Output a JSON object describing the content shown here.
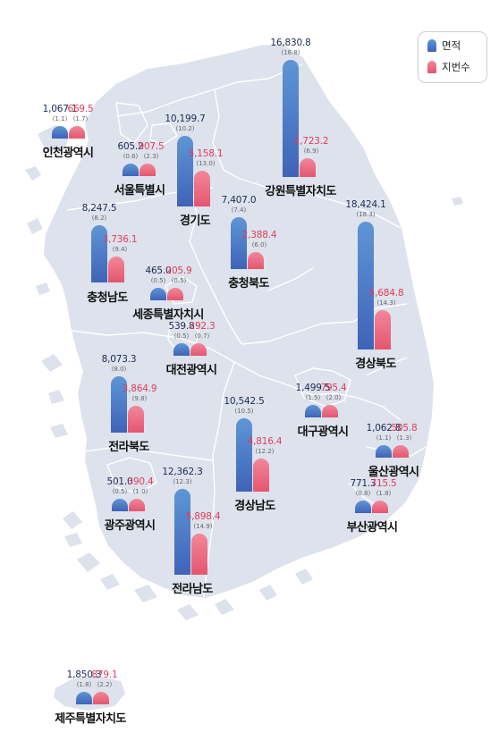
{
  "legend": {
    "area_label": "면적",
    "lots_label": "지번수",
    "area_color": "#4a7cc9",
    "lots_color": "#ec6a80"
  },
  "regions": [
    {
      "name": "인천광역시",
      "area": "1,067.1",
      "area_pct": "(1.1)",
      "lots": "669.5",
      "lots_pct": "(1.7)"
    },
    {
      "name": "서울특별시",
      "area": "605.2",
      "area_pct": "(0.6)",
      "lots": "907.5",
      "lots_pct": "(2.3)"
    },
    {
      "name": "경기도",
      "area": "10,199.7",
      "area_pct": "(10.2)",
      "lots": "5,158.1",
      "lots_pct": "(13.0)"
    },
    {
      "name": "강원특별자치도",
      "area": "16,830.8",
      "area_pct": "(16.8)",
      "lots": "2,723.2",
      "lots_pct": "(6.9)"
    },
    {
      "name": "충청남도",
      "area": "8,247.5",
      "area_pct": "(8.2)",
      "lots": "3,736.1",
      "lots_pct": "(9.4)"
    },
    {
      "name": "충청북도",
      "area": "7,407.0",
      "area_pct": "(7.4)",
      "lots": "2,388.4",
      "lots_pct": "(6.0)"
    },
    {
      "name": "경상북도",
      "area": "18,424.1",
      "area_pct": "(18.3)",
      "lots": "5,684.8",
      "lots_pct": "(14.3)"
    },
    {
      "name": "세종특별자치시",
      "area": "465.0",
      "area_pct": "(0.5)",
      "lots": "205.9",
      "lots_pct": "(0.5)"
    },
    {
      "name": "대전광역시",
      "area": "539.8",
      "area_pct": "(0.5)",
      "lots": "292.3",
      "lots_pct": "(0.7)"
    },
    {
      "name": "전라북도",
      "area": "8,073.3",
      "area_pct": "(8.0)",
      "lots": "3,864.9",
      "lots_pct": "(9.8)"
    },
    {
      "name": "대구광역시",
      "area": "1,499.5",
      "area_pct": "(1.5)",
      "lots": "795.4",
      "lots_pct": "(2.0)"
    },
    {
      "name": "경상남도",
      "area": "10,542.5",
      "area_pct": "(10.5)",
      "lots": "4,816.4",
      "lots_pct": "(12.2)"
    },
    {
      "name": "울산광역시",
      "area": "1,062.8",
      "area_pct": "(1.1)",
      "lots": "505.8",
      "lots_pct": "(1.3)"
    },
    {
      "name": "광주광역시",
      "area": "501.0",
      "area_pct": "(0.5)",
      "lots": "390.4",
      "lots_pct": "(1.0)"
    },
    {
      "name": "전라남도",
      "area": "12,362.3",
      "area_pct": "(12.3)",
      "lots": "5,898.4",
      "lots_pct": "(14.9)"
    },
    {
      "name": "부산광역시",
      "area": "771.3",
      "area_pct": "(0.8)",
      "lots": "715.5",
      "lots_pct": "(1.8)"
    },
    {
      "name": "제주특별자치도",
      "area": "1,850.3",
      "area_pct": "(1.8)",
      "lots": "879.1",
      "lots_pct": "(2.2)"
    }
  ]
}
